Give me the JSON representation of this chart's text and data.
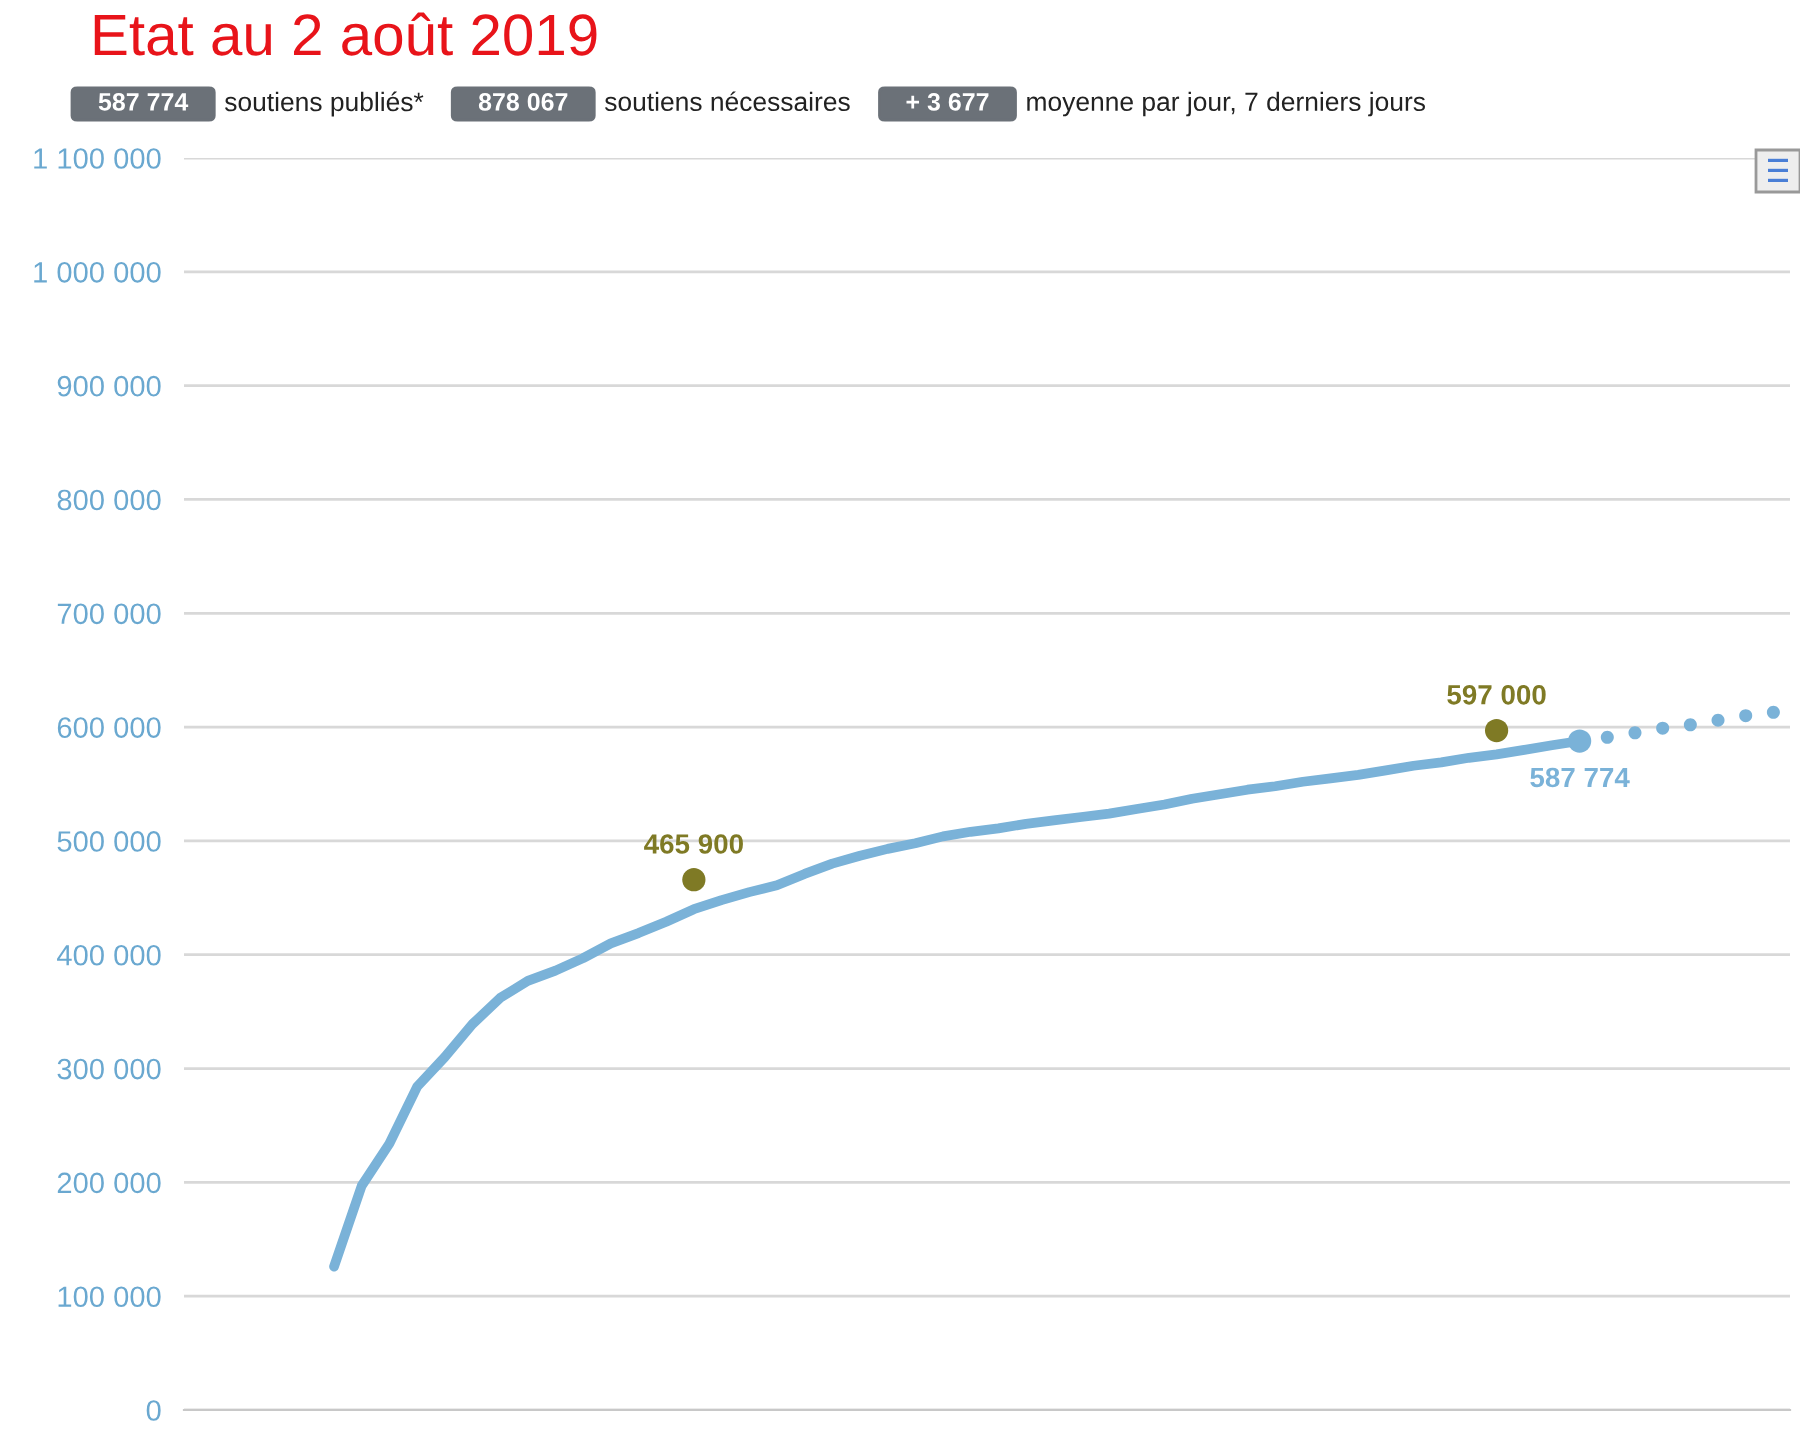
{
  "chart_data": {
    "type": "line",
    "title": "Etat au 2 août 2019",
    "annotations": [
      "587 774",
      "soutiens publiés*",
      "878 067",
      "soutiens nécessaires",
      "+ 3 677",
      "moyenne par jour, 7 derniers jours"
    ],
    "categories": [
      null,
      null,
      null,
      null,
      null,
      null,
      null,
      null,
      null,
      null,
      null,
      null,
      null,
      null,
      null,
      null,
      null,
      null,
      null,
      null,
      null,
      null,
      null,
      null,
      null,
      null,
      null,
      null,
      null,
      null,
      null,
      null,
      null,
      null,
      null,
      null,
      null,
      null,
      null,
      null,
      null,
      null,
      null,
      null,
      null,
      null,
      null,
      null,
      null,
      null,
      null,
      null,
      null,
      null,
      null,
      null,
      null,
      null
    ],
    "series": [
      {
        "color": "#7ab2d8",
        "values": [
          null,
          null,
          null,
          null,
          null,
          126000,
          197000,
          234000,
          284000,
          310000,
          339000,
          362000,
          377000,
          386000,
          397000,
          410000,
          419000,
          429000,
          440000,
          448000,
          455000,
          461000,
          471000,
          480000,
          487000,
          493000,
          498000,
          504000,
          508000,
          511000,
          515000,
          518000,
          521000,
          524000,
          528000,
          532000,
          537000,
          541000,
          545000,
          548000,
          552000,
          555000,
          558000,
          562000,
          566000,
          569000,
          573000,
          576000,
          580000,
          584000,
          587774,
          null,
          null,
          null,
          null,
          null,
          null,
          null
        ]
      },
      {
        "type": "scatter",
        "color": "#7ab2d8",
        "marker": "circle",
        "values": [
          null,
          null,
          null,
          null,
          null,
          null,
          null,
          null,
          null,
          null,
          null,
          null,
          null,
          null,
          null,
          null,
          null,
          null,
          null,
          null,
          null,
          null,
          null,
          null,
          null,
          null,
          null,
          null,
          null,
          null,
          null,
          null,
          null,
          null,
          null,
          null,
          null,
          null,
          null,
          null,
          null,
          null,
          null,
          null,
          null,
          null,
          null,
          null,
          null,
          null,
          null,
          591000,
          595000,
          599000,
          602000,
          606000,
          610000,
          613000
        ]
      },
      {
        "type": "scatter",
        "color": "#7ab2d8",
        "marker": "circle",
        "values": [
          null,
          null,
          null,
          null,
          null,
          null,
          null,
          null,
          null,
          null,
          null,
          null,
          null,
          null,
          null,
          null,
          null,
          null,
          null,
          null,
          null,
          null,
          null,
          null,
          null,
          null,
          null,
          null,
          null,
          null,
          null,
          null,
          null,
          null,
          null,
          null,
          null,
          null,
          null,
          null,
          null,
          null,
          null,
          null,
          null,
          null,
          null,
          null,
          null,
          null,
          587774,
          null,
          null,
          null,
          null,
          null,
          null,
          null
        ],
        "value_labels": [
          null,
          null,
          null,
          null,
          null,
          null,
          null,
          null,
          null,
          null,
          null,
          null,
          null,
          null,
          null,
          null,
          null,
          null,
          null,
          null,
          null,
          null,
          null,
          null,
          null,
          null,
          null,
          null,
          null,
          null,
          null,
          null,
          null,
          null,
          null,
          null,
          null,
          null,
          null,
          null,
          null,
          null,
          null,
          null,
          null,
          null,
          null,
          null,
          null,
          null,
          "587 774",
          null,
          null,
          null,
          null,
          null,
          null,
          null
        ]
      },
      {
        "type": "scatter",
        "color": "#7f7a25",
        "marker": "circle",
        "values": [
          null,
          null,
          null,
          null,
          null,
          null,
          null,
          null,
          null,
          null,
          null,
          null,
          null,
          null,
          null,
          null,
          null,
          null,
          465900,
          null,
          null,
          null,
          null,
          null,
          null,
          null,
          null,
          null,
          null,
          null,
          null,
          null,
          null,
          null,
          null,
          null,
          null,
          null,
          null,
          null,
          null,
          null,
          null,
          null,
          null,
          null,
          null,
          597000,
          null,
          null,
          null,
          null,
          null,
          null,
          null,
          null,
          null,
          null
        ],
        "value_labels": [
          null,
          null,
          null,
          null,
          null,
          null,
          null,
          null,
          null,
          null,
          null,
          null,
          null,
          null,
          null,
          null,
          null,
          null,
          "465 900",
          null,
          null,
          null,
          null,
          null,
          null,
          null,
          null,
          null,
          null,
          null,
          null,
          null,
          null,
          null,
          null,
          null,
          null,
          null,
          null,
          null,
          null,
          null,
          null,
          null,
          null,
          null,
          null,
          "597 000",
          null,
          null,
          null,
          null,
          null,
          null,
          null,
          null,
          null,
          null
        ]
      }
    ],
    "ylim": [
      0,
      1100000
    ],
    "yticks": [
      {
        "value": 0,
        "label": "0"
      },
      {
        "value": 100000,
        "label": "100 000"
      },
      {
        "value": 200000,
        "label": "200 000"
      },
      {
        "value": 300000,
        "label": "300 000"
      },
      {
        "value": 400000,
        "label": "400 000"
      },
      {
        "value": 500000,
        "label": "500 000"
      },
      {
        "value": 600000,
        "label": "600 000"
      },
      {
        "value": 700000,
        "label": "700 000"
      },
      {
        "value": 800000,
        "label": "800 000"
      },
      {
        "value": 900000,
        "label": "900 000"
      },
      {
        "value": 1000000,
        "label": "1 000 000"
      },
      {
        "value": 1100000,
        "label": "1 100 000"
      }
    ],
    "grid": "y",
    "tick_labels": "y"
  }
}
